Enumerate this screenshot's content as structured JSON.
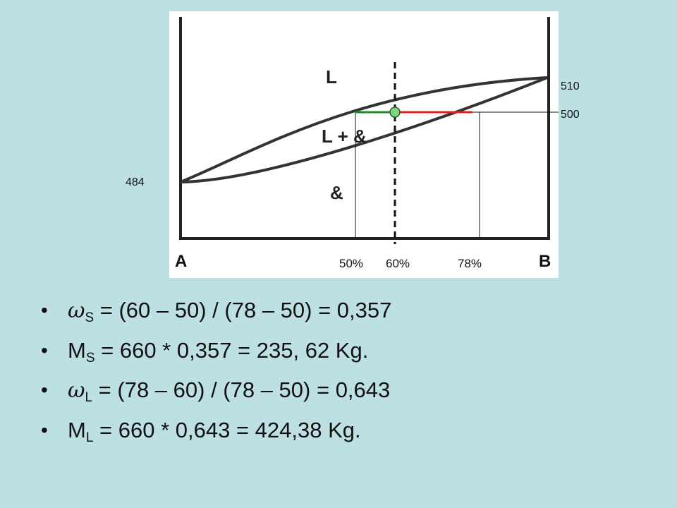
{
  "diagram": {
    "region_labels": {
      "liquid": "L",
      "two_phase": "L + &",
      "solid": "&"
    },
    "axis_labels": {
      "left": "A",
      "right": "B"
    },
    "temperature_labels": {
      "t510": "510",
      "t500": "500",
      "t484": "484"
    },
    "composition_labels": {
      "c50": "50%",
      "c60": "60%",
      "c78": "78%"
    },
    "colors": {
      "solid_side_tie": "#1f8a2a",
      "liquid_side_tie": "#e02020",
      "marker_fill": "#7ed67e"
    }
  },
  "bullets": [
    {
      "symbol": "ω",
      "sub": "S",
      "text": " = (60 – 50) / (78 – 50)  = 0,357"
    },
    {
      "symbol": "M",
      "sub": "S",
      "text": " = 660 * 0,357 = 235, 62 Kg."
    },
    {
      "symbol": "ω",
      "sub": "L",
      "text": " = (78 – 60) / (78 – 50)  = 0,643"
    },
    {
      "symbol": "M",
      "sub": "L",
      "text": "  = 660 * 0,643 = 424,38 Kg."
    }
  ]
}
